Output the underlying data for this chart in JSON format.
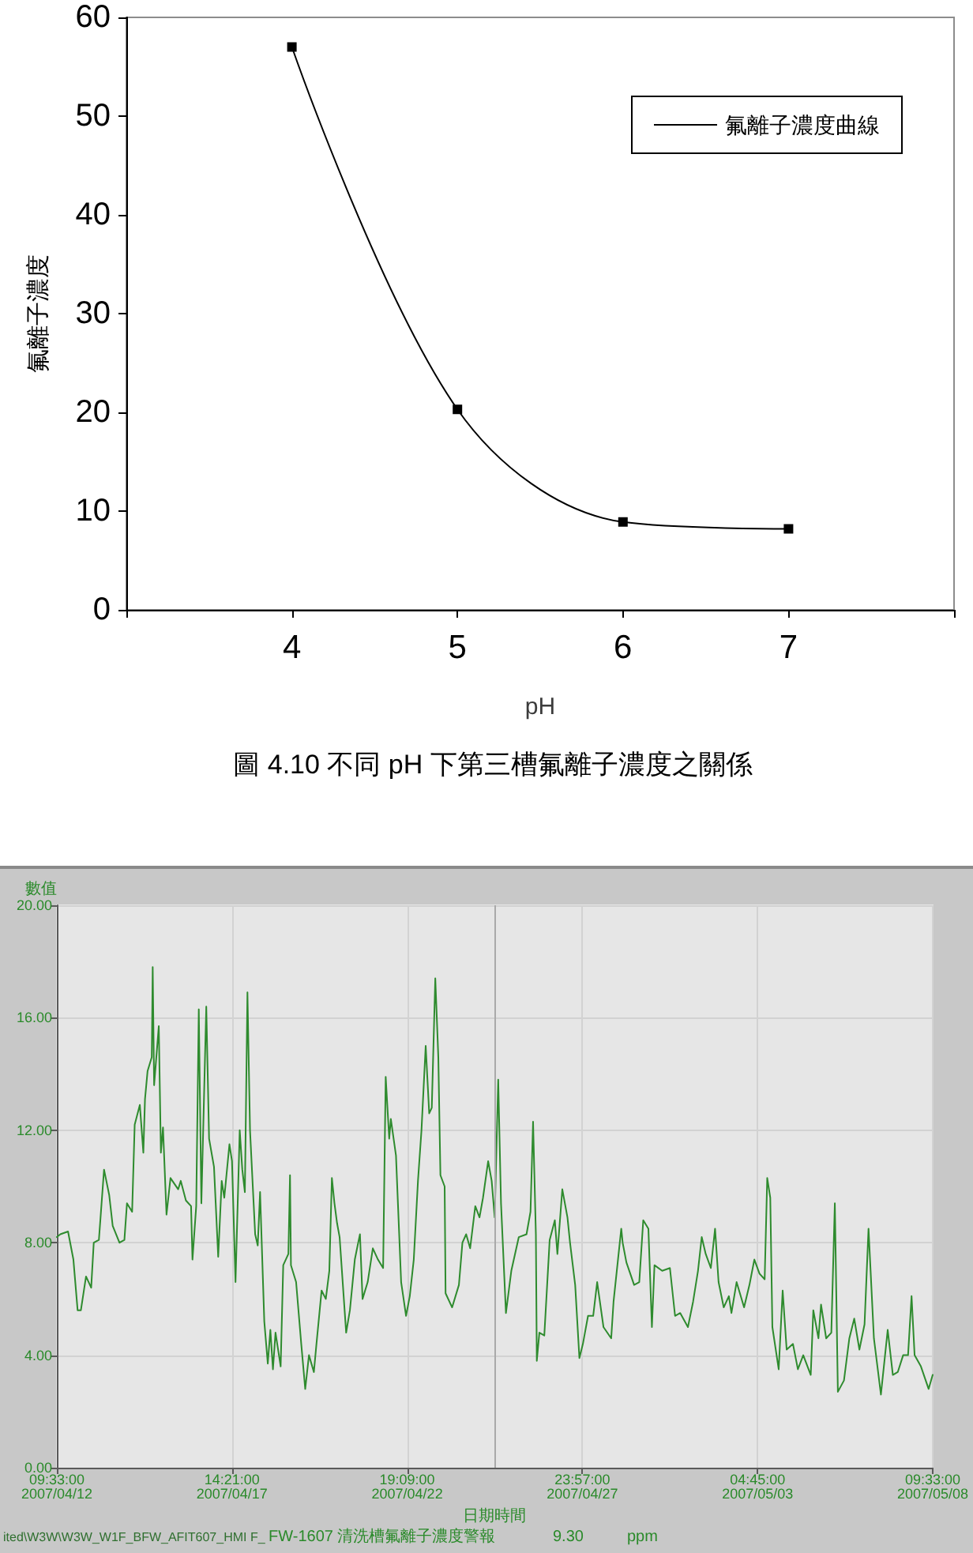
{
  "chart_data": [
    {
      "type": "line",
      "xlabel": "pH",
      "ylabel": "氟離子濃度",
      "x": [
        4,
        5,
        6,
        7
      ],
      "series": [
        {
          "name": "氟離子濃度曲線",
          "color": "#000000",
          "values": [
            57,
            20.3,
            8.9,
            8.2
          ]
        }
      ],
      "xlim": [
        3,
        8
      ],
      "xticks": [
        {
          "value": 3,
          "label": null
        },
        4,
        5,
        6,
        7,
        {
          "value": 8,
          "label": null
        }
      ],
      "ylim": [
        0,
        60
      ],
      "yticks": [
        0,
        10,
        20,
        30,
        40,
        50,
        60
      ],
      "marker": "square",
      "legend": "top right",
      "annotations": [
        "圖 4.10 不同 pH 下第三槽氟離子濃度之關係"
      ]
    },
    {
      "type": "line",
      "xlabel": "日期時間",
      "ylabel": "數值",
      "color": "#2e8b2e",
      "grid": true,
      "x": [
        "2007-04-12T09:33",
        "2007-04-12T12:00",
        "2007-04-12T17:30",
        "2007-04-12T21:20",
        "2007-04-13T00:20",
        "2007-04-13T02:40",
        "2007-04-13T06:20",
        "2007-04-13T10:00",
        "2007-04-13T11:50",
        "2007-04-13T15:30",
        "2007-04-13T19:10",
        "2007-04-13T22:50",
        "2007-04-14T01:20",
        "2007-04-14T06:10",
        "2007-04-14T09:40",
        "2007-04-14T11:30",
        "2007-04-14T15:10",
        "2007-04-14T17:00",
        "2007-04-14T20:40",
        "2007-04-14T23:10",
        "2007-04-15T00:20",
        "2007-04-15T02:10",
        "2007-04-15T05:10",
        "2007-04-15T05:50",
        "2007-04-15T06:50",
        "2007-04-15T10:10",
        "2007-04-15T11:40",
        "2007-04-15T13:10",
        "2007-04-15T15:40",
        "2007-04-15T18:30",
        "2007-04-16T00:00",
        "2007-04-16T01:50",
        "2007-04-16T05:30",
        "2007-04-16T09:10",
        "2007-04-16T10:10",
        "2007-04-16T12:50",
        "2007-04-16T14:40",
        "2007-04-16T16:30",
        "2007-04-16T20:00",
        "2007-04-16T22:00",
        "2007-04-17T01:30",
        "2007-04-17T04:30",
        "2007-04-17T07:00",
        "2007-04-17T08:50",
        "2007-04-17T12:30",
        "2007-04-17T14:20",
        "2007-04-17T16:50",
        "2007-04-17T19:50",
        "2007-04-17T21:40",
        "2007-04-17T23:30",
        "2007-04-18T01:20",
        "2007-04-18T03:10",
        "2007-04-18T06:50",
        "2007-04-18T08:40",
        "2007-04-18T10:20",
        "2007-04-18T13:20",
        "2007-04-18T15:50",
        "2007-04-18T17:40",
        "2007-04-18T19:30",
        "2007-04-18T21:20",
        "2007-04-19T01:00",
        "2007-04-19T02:50",
        "2007-04-19T06:30",
        "2007-04-19T07:40",
        "2007-04-19T08:20",
        "2007-04-19T12:00",
        "2007-04-19T15:40",
        "2007-04-19T18:30",
        "2007-04-19T21:10",
        "2007-04-20T00:40",
        "2007-04-20T02:30",
        "2007-04-20T06:10",
        "2007-04-20T09:10",
        "2007-04-20T11:40",
        "2007-04-20T13:30",
        "2007-04-20T15:20",
        "2007-04-20T17:10",
        "2007-04-20T19:00",
        "2007-04-20T23:40",
        "2007-04-21T02:20",
        "2007-04-21T05:50",
        "2007-04-21T07:50",
        "2007-04-21T09:30",
        "2007-04-21T11:20",
        "2007-04-21T15:00",
        "2007-04-21T18:40",
        "2007-04-21T22:20",
        "2007-04-22T02:00",
        "2007-04-22T03:50",
        "2007-04-22T06:20",
        "2007-04-22T07:30",
        "2007-04-22T11:10",
        "2007-04-22T14:50",
        "2007-04-22T18:20",
        "2007-04-22T21:00",
        "2007-04-22T23:50",
        "2007-04-23T02:50",
        "2007-04-23T05:20",
        "2007-04-23T08:20",
        "2007-04-23T10:50",
        "2007-04-23T12:40",
        "2007-04-23T15:10",
        "2007-04-23T17:20",
        "2007-04-23T18:50",
        "2007-04-23T21:50",
        "2007-04-23T22:30",
        "2007-04-24T03:10",
        "2007-04-24T08:00",
        "2007-04-24T10:30",
        "2007-04-24T13:10",
        "2007-04-24T16:00",
        "2007-04-24T19:40",
        "2007-04-24T22:40",
        "2007-04-25T01:10",
        "2007-04-25T04:50",
        "2007-04-25T07:20",
        "2007-04-25T09:30",
        "2007-04-25T12:00",
        "2007-04-25T14:00",
        "2007-04-25T17:30",
        "2007-04-25T21:20",
        "2007-04-26T02:40",
        "2007-04-26T08:10",
        "2007-04-26T11:00",
        "2007-04-26T12:50",
        "2007-04-26T14:50",
        "2007-04-26T15:30",
        "2007-04-26T17:20",
        "2007-04-26T20:50",
        "2007-04-27T00:40",
        "2007-04-27T04:20",
        "2007-04-27T06:10",
        "2007-04-27T09:40",
        "2007-04-27T13:20",
        "2007-04-27T15:10",
        "2007-04-27T18:50",
        "2007-04-27T21:50",
        "2007-04-28T00:20",
        "2007-04-28T04:00",
        "2007-04-28T07:40",
        "2007-04-28T10:30",
        "2007-04-28T15:00",
        "2007-04-28T20:30",
        "2007-04-28T22:10",
        "2007-04-29T03:40",
        "2007-04-29T04:40",
        "2007-04-29T07:20",
        "2007-04-29T12:50",
        "2007-04-29T16:30",
        "2007-04-29T19:20",
        "2007-04-29T23:00",
        "2007-04-30T01:30",
        "2007-04-30T03:20",
        "2007-04-30T08:50",
        "2007-04-30T14:20",
        "2007-04-30T18:00",
        "2007-04-30T21:40",
        "2007-05-01T03:10",
        "2007-05-01T06:50",
        "2007-05-01T10:20",
        "2007-05-01T13:00",
        "2007-05-01T15:50",
        "2007-05-01T19:30",
        "2007-05-01T22:30",
        "2007-05-02T01:00",
        "2007-05-02T04:40",
        "2007-05-02T08:20",
        "2007-05-02T10:10",
        "2007-05-02T13:50",
        "2007-05-02T19:10",
        "2007-05-02T23:00",
        "2007-05-03T02:30",
        "2007-05-03T06:10",
        "2007-05-03T09:50",
        "2007-05-03T11:40",
        "2007-05-03T13:50",
        "2007-05-03T15:20",
        "2007-05-03T19:50",
        "2007-05-03T22:40",
        "2007-05-04T01:30",
        "2007-05-04T06:00",
        "2007-05-04T09:30",
        "2007-05-04T13:20",
        "2007-05-04T18:40",
        "2007-05-04T20:30",
        "2007-05-05T00:10",
        "2007-05-05T02:00",
        "2007-05-05T05:40",
        "2007-05-05T09:20",
        "2007-05-05T11:50",
        "2007-05-05T14:00",
        "2007-05-05T18:20",
        "2007-05-05T22:10",
        "2007-05-06T01:40",
        "2007-05-06T05:20",
        "2007-05-06T09:00",
        "2007-05-06T11:50",
        "2007-05-06T15:40",
        "2007-05-06T20:40",
        "2007-05-07T01:30",
        "2007-05-07T05:10",
        "2007-05-07T08:40",
        "2007-05-07T12:30",
        "2007-05-07T16:00",
        "2007-05-07T18:30",
        "2007-05-07T20:40",
        "2007-05-08T01:10",
        "2007-05-08T06:40",
        "2007-05-08T09:33"
      ],
      "values": [
        8.2,
        8.3,
        8.4,
        7.4,
        5.6,
        5.6,
        6.8,
        6.4,
        8,
        8.1,
        10.6,
        9.7,
        8.6,
        8,
        8.1,
        9.4,
        9.1,
        12.2,
        12.9,
        11.2,
        13.1,
        14.1,
        14.6,
        17.8,
        13.6,
        15.7,
        11.2,
        12.1,
        9,
        10.3,
        9.9,
        10.2,
        9.5,
        9.3,
        7.4,
        9.3,
        16.3,
        9.4,
        16.4,
        11.7,
        10.7,
        7.5,
        10.2,
        9.6,
        11.5,
        10.9,
        6.6,
        12,
        10.6,
        9.8,
        16.9,
        12,
        8.3,
        7.9,
        9.8,
        5.2,
        3.7,
        4.9,
        3.5,
        4.8,
        3.6,
        7.2,
        7.6,
        10.4,
        7.2,
        6.6,
        4.4,
        2.8,
        4,
        3.4,
        4.4,
        6.3,
        6,
        7,
        10.3,
        9.4,
        8.7,
        8.2,
        4.8,
        5.6,
        7.4,
        7.9,
        8.3,
        6,
        6.6,
        7.8,
        7.4,
        7.1,
        13.9,
        11.7,
        12.4,
        11.1,
        6.6,
        5.4,
        6.1,
        7.4,
        10.2,
        12,
        15,
        12.6,
        12.8,
        17.4,
        14.6,
        10.4,
        10,
        6.2,
        5.7,
        6.5,
        8,
        8.3,
        7.8,
        9.3,
        8.9,
        9.6,
        10.9,
        10.2,
        8.9,
        13.8,
        9.4,
        5.5,
        7,
        8.2,
        8.3,
        9.1,
        12.3,
        8.3,
        3.8,
        4.8,
        4.7,
        8.1,
        8.8,
        7.6,
        9.9,
        8.9,
        8,
        6.5,
        3.9,
        4.4,
        5.4,
        5.4,
        6.6,
        5,
        4.6,
        5.9,
        8.5,
        8,
        7.3,
        6.5,
        6.6,
        8.8,
        8.5,
        5,
        7.2,
        7,
        7.1,
        5.4,
        5.5,
        5,
        5.9,
        7,
        8.2,
        7.6,
        7.1,
        8.5,
        6.6,
        5.7,
        6.1,
        5.5,
        6.6,
        5.7,
        6.5,
        7.4,
        6.9,
        6.7,
        10.3,
        9.6,
        5,
        3.5,
        6.3,
        4.2,
        4.4,
        3.5,
        4,
        3.3,
        5.6,
        4.6,
        5.8,
        4.6,
        4.8,
        9.4,
        2.7,
        3.1,
        4.6,
        5.3,
        4.2,
        5.1,
        8.5,
        4.6,
        2.6,
        4.9,
        3.3,
        3.4,
        4,
        4,
        6.1,
        4,
        3.6,
        2.8,
        3.3
      ],
      "xlim": [
        "2007-04-12T09:33",
        "2007-05-08T09:33"
      ],
      "xticks": [
        {
          "value": "2007-04-12T09:33",
          "label": "09:33:00\n2007/04/12"
        },
        {
          "value": "2007-04-17T14:21",
          "label": "14:21:00\n2007/04/17"
        },
        {
          "value": "2007-04-22T19:09",
          "label": "19:09:00\n2007/04/22"
        },
        {
          "value": "2007-04-27T23:57",
          "label": "23:57:00\n2007/04/27"
        },
        {
          "value": "2007-05-03T04:45",
          "label": "04:45:00\n2007/05/03"
        },
        {
          "value": "2007-05-08T09:33",
          "label": "09:33:00\n2007/05/08"
        }
      ],
      "ylim": [
        0,
        20
      ],
      "yticks": [
        {
          "value": 0,
          "label": "0.00"
        },
        {
          "value": 4,
          "label": "4.00"
        },
        {
          "value": 8,
          "label": "8.00"
        },
        {
          "value": 12,
          "label": "12.00"
        },
        {
          "value": 16,
          "label": "16.00"
        },
        {
          "value": 20,
          "label": "20.00"
        }
      ],
      "ref_lines": [
        {
          "axis": "x",
          "value": "2007-04-25T10:00",
          "color": "#a9a9a9"
        }
      ],
      "annotations": [
        "ited\\W3W\\W3W_W1F_BFW_AFIT607_HMI F_",
        "FW-1607 清洗槽氟離子濃度警報",
        "9.30",
        "ppm"
      ]
    }
  ]
}
